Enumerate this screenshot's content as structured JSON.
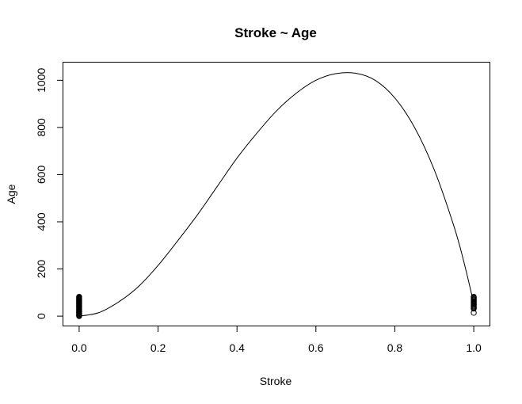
{
  "chart_data": {
    "type": "scatter",
    "title": "Stroke ~ Age",
    "xlabel": "Stroke",
    "ylabel": "Age",
    "xlim": [
      -0.04,
      1.04
    ],
    "ylim": [
      -40,
      1075
    ],
    "x_ticks": [
      0.0,
      0.2,
      0.4,
      0.6,
      0.8,
      1.0
    ],
    "x_tick_labels": [
      "0.0",
      "0.2",
      "0.4",
      "0.6",
      "0.8",
      "1.0"
    ],
    "y_ticks": [
      0,
      200,
      400,
      600,
      800,
      1000
    ],
    "y_tick_labels": [
      "0",
      "200",
      "400",
      "600",
      "800",
      "1000"
    ],
    "grid": false,
    "series": [
      {
        "kind": "points",
        "points": [
          {
            "x": 0,
            "y": 0.1
          },
          {
            "x": 0,
            "y": 2
          },
          {
            "x": 0,
            "y": 5
          },
          {
            "x": 0,
            "y": 8
          },
          {
            "x": 0,
            "y": 11
          },
          {
            "x": 0,
            "y": 14
          },
          {
            "x": 0,
            "y": 17
          },
          {
            "x": 0,
            "y": 20
          },
          {
            "x": 0,
            "y": 23
          },
          {
            "x": 0,
            "y": 26
          },
          {
            "x": 0,
            "y": 29
          },
          {
            "x": 0,
            "y": 32
          },
          {
            "x": 0,
            "y": 35
          },
          {
            "x": 0,
            "y": 38
          },
          {
            "x": 0,
            "y": 41
          },
          {
            "x": 0,
            "y": 44
          },
          {
            "x": 0,
            "y": 47
          },
          {
            "x": 0,
            "y": 50
          },
          {
            "x": 0,
            "y": 53
          },
          {
            "x": 0,
            "y": 56
          },
          {
            "x": 0,
            "y": 59
          },
          {
            "x": 0,
            "y": 62
          },
          {
            "x": 0,
            "y": 65
          },
          {
            "x": 0,
            "y": 68
          },
          {
            "x": 0,
            "y": 71
          },
          {
            "x": 0,
            "y": 74
          },
          {
            "x": 0,
            "y": 77
          },
          {
            "x": 0,
            "y": 80
          },
          {
            "x": 0,
            "y": 82
          },
          {
            "x": 1,
            "y": 14
          },
          {
            "x": 1,
            "y": 32
          },
          {
            "x": 1,
            "y": 36
          },
          {
            "x": 1,
            "y": 40
          },
          {
            "x": 1,
            "y": 44
          },
          {
            "x": 1,
            "y": 48
          },
          {
            "x": 1,
            "y": 52
          },
          {
            "x": 1,
            "y": 56
          },
          {
            "x": 1,
            "y": 60
          },
          {
            "x": 1,
            "y": 64
          },
          {
            "x": 1,
            "y": 68
          },
          {
            "x": 1,
            "y": 72
          },
          {
            "x": 1,
            "y": 76
          },
          {
            "x": 1,
            "y": 79
          },
          {
            "x": 1,
            "y": 82
          }
        ]
      },
      {
        "kind": "line",
        "points": [
          {
            "x": 0.0,
            "y": 0
          },
          {
            "x": 0.05,
            "y": 15
          },
          {
            "x": 0.1,
            "y": 60
          },
          {
            "x": 0.15,
            "y": 125
          },
          {
            "x": 0.2,
            "y": 215
          },
          {
            "x": 0.25,
            "y": 320
          },
          {
            "x": 0.3,
            "y": 430
          },
          {
            "x": 0.35,
            "y": 550
          },
          {
            "x": 0.4,
            "y": 670
          },
          {
            "x": 0.45,
            "y": 775
          },
          {
            "x": 0.5,
            "y": 870
          },
          {
            "x": 0.55,
            "y": 945
          },
          {
            "x": 0.6,
            "y": 1000
          },
          {
            "x": 0.65,
            "y": 1028
          },
          {
            "x": 0.7,
            "y": 1030
          },
          {
            "x": 0.75,
            "y": 1000
          },
          {
            "x": 0.8,
            "y": 925
          },
          {
            "x": 0.85,
            "y": 800
          },
          {
            "x": 0.9,
            "y": 620
          },
          {
            "x": 0.95,
            "y": 380
          },
          {
            "x": 0.975,
            "y": 230
          },
          {
            "x": 1.0,
            "y": 55
          }
        ]
      }
    ]
  }
}
